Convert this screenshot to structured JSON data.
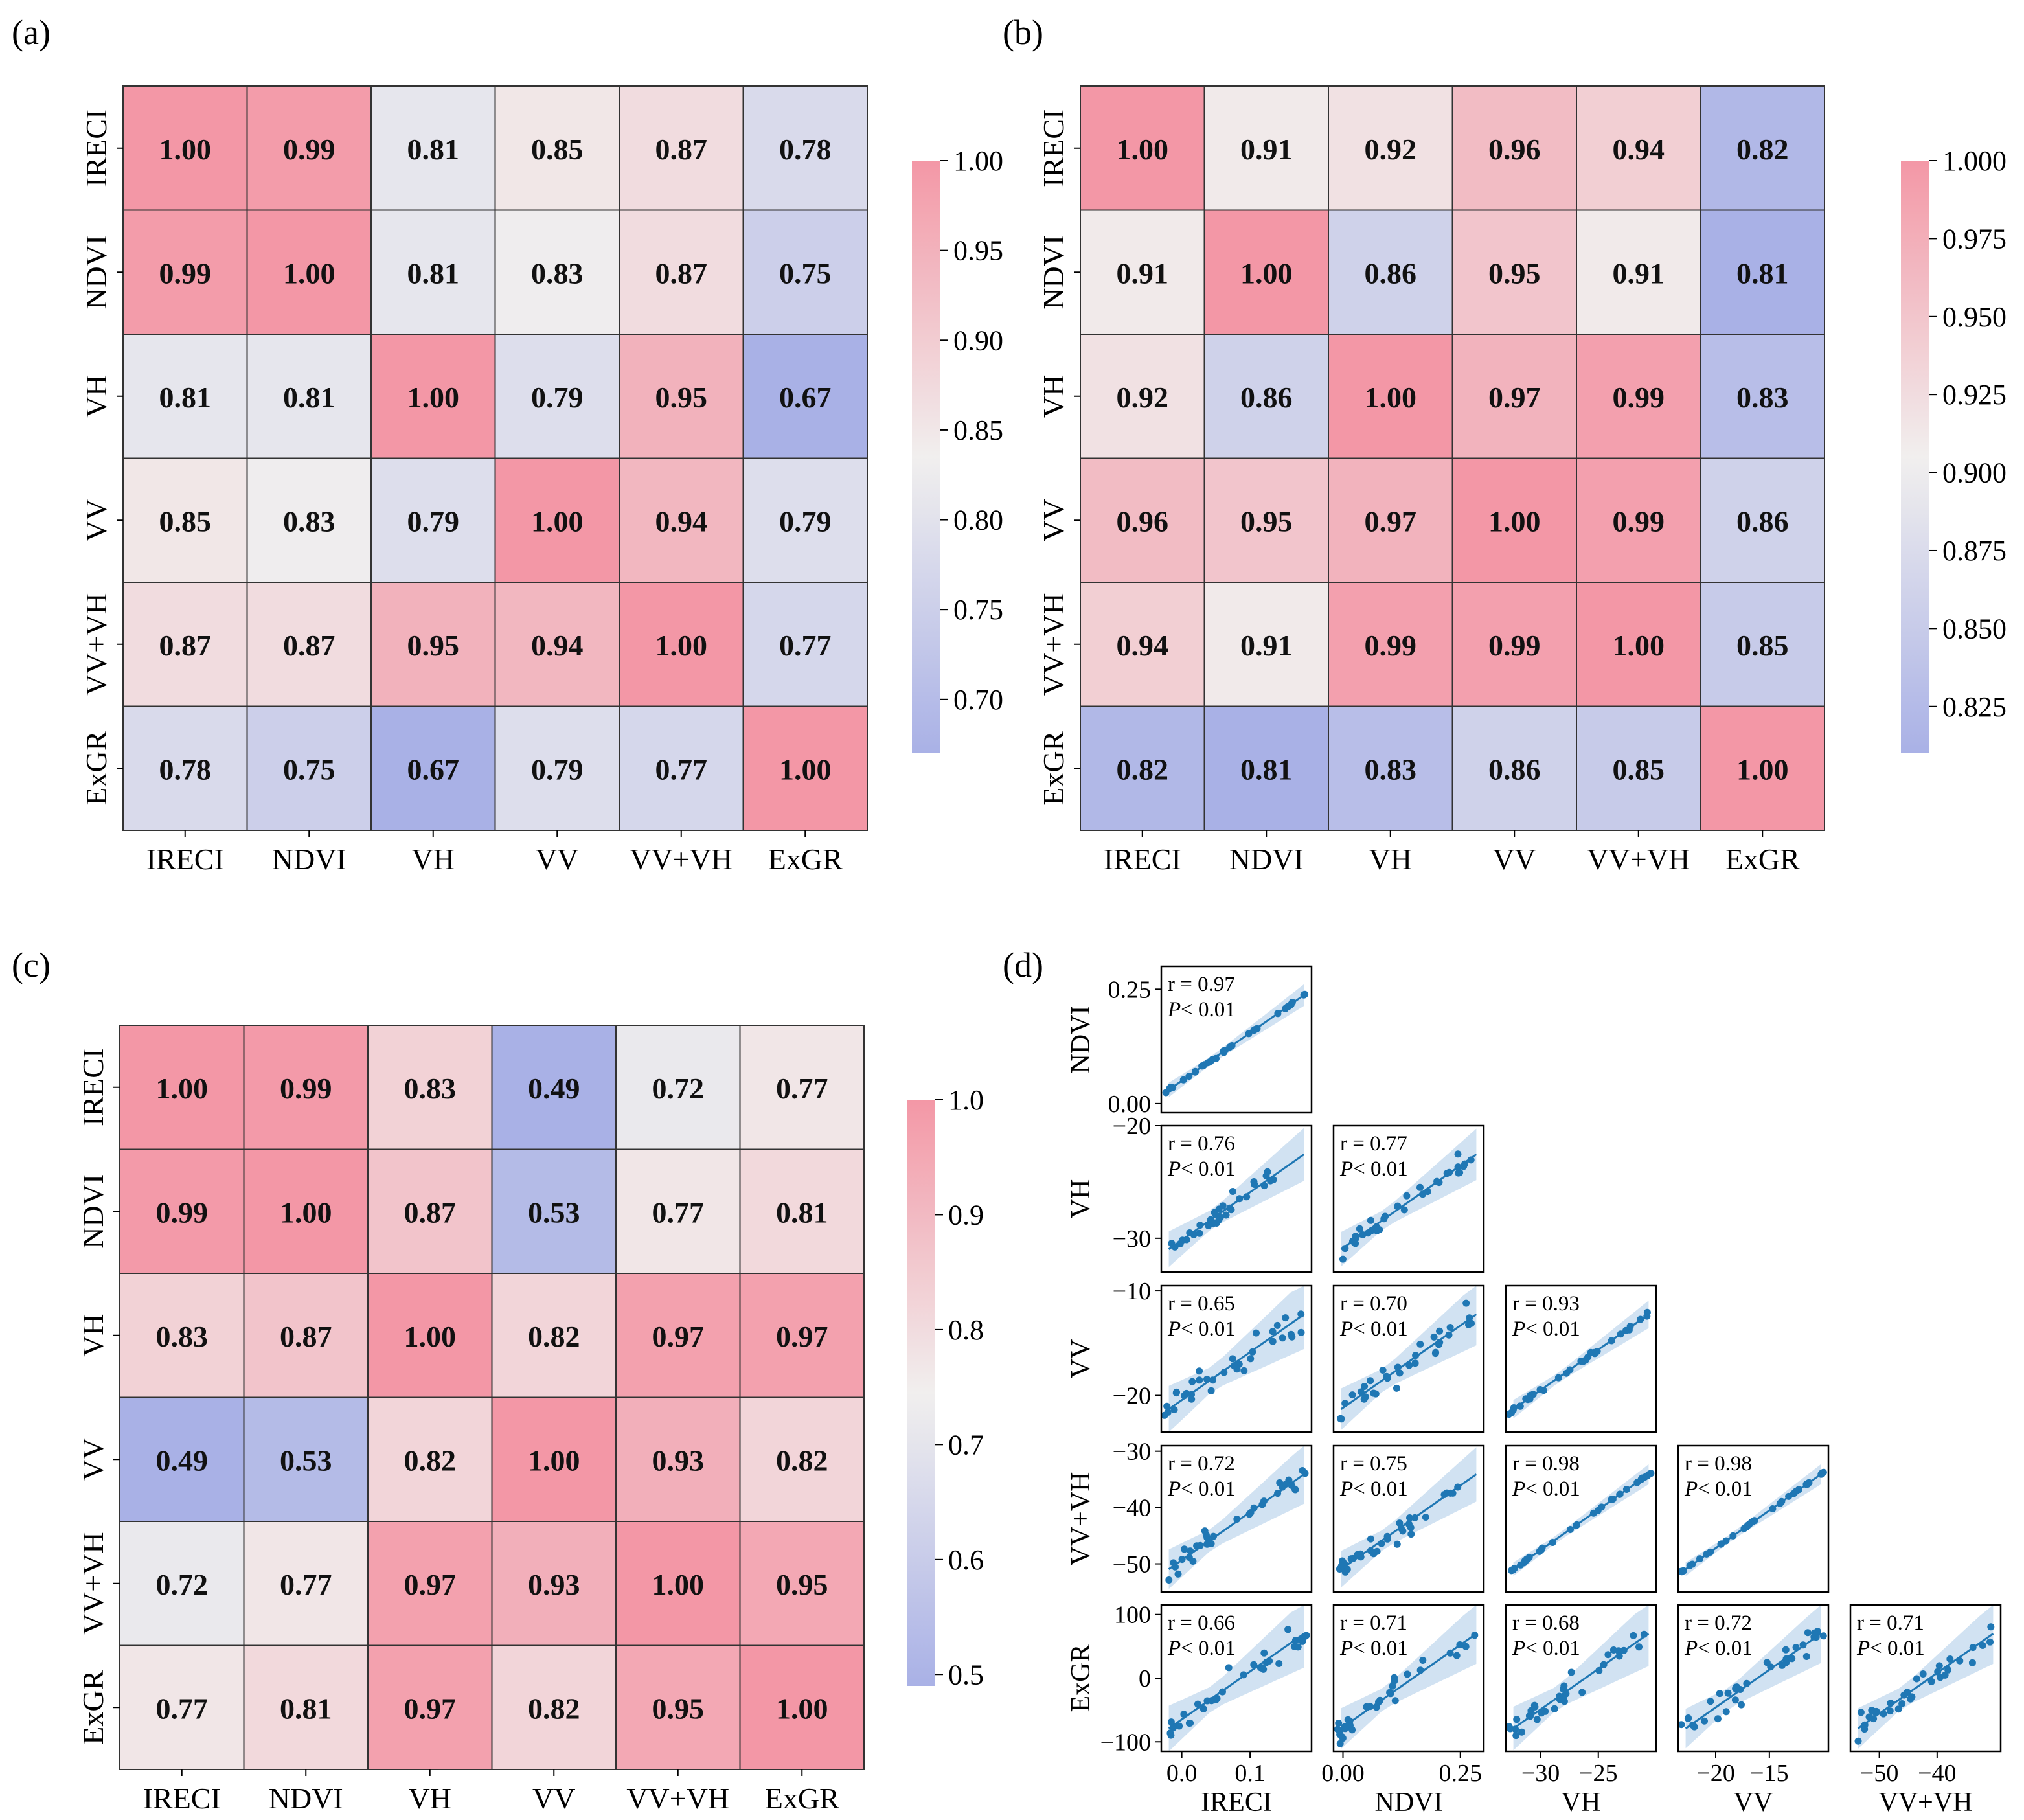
{
  "panels": [
    {
      "label": "(a)",
      "chart_data": {
        "type": "heatmap",
        "title": "",
        "variables": [
          "IRECI",
          "NDVI",
          "VH",
          "VV",
          "VV+VH",
          "ExGR"
        ],
        "matrix": [
          [
            1.0,
            0.99,
            0.81,
            0.85,
            0.87,
            0.78
          ],
          [
            0.99,
            1.0,
            0.81,
            0.83,
            0.87,
            0.75
          ],
          [
            0.81,
            0.81,
            1.0,
            0.79,
            0.95,
            0.67
          ],
          [
            0.85,
            0.83,
            0.79,
            1.0,
            0.94,
            0.79
          ],
          [
            0.87,
            0.87,
            0.95,
            0.94,
            1.0,
            0.77
          ],
          [
            0.78,
            0.75,
            0.67,
            0.79,
            0.77,
            1.0
          ]
        ],
        "colorbar": {
          "vmin": 0.67,
          "vmax": 1.0,
          "ticks": [
            1.0,
            0.95,
            0.9,
            0.85,
            0.8,
            0.75,
            0.7
          ],
          "tick_labels": [
            "1.00",
            "0.95",
            "0.90",
            "0.85",
            "0.80",
            "0.75",
            "0.70"
          ]
        },
        "cell_labels_format": "0.00"
      }
    },
    {
      "label": "(b)",
      "chart_data": {
        "type": "heatmap",
        "title": "",
        "variables": [
          "IRECI",
          "NDVI",
          "VH",
          "VV",
          "VV+VH",
          "ExGR"
        ],
        "matrix": [
          [
            1.0,
            0.91,
            0.92,
            0.96,
            0.94,
            0.82
          ],
          [
            0.91,
            1.0,
            0.86,
            0.95,
            0.91,
            0.81
          ],
          [
            0.92,
            0.86,
            1.0,
            0.97,
            0.99,
            0.83
          ],
          [
            0.96,
            0.95,
            0.97,
            1.0,
            0.99,
            0.86
          ],
          [
            0.94,
            0.91,
            0.99,
            0.99,
            1.0,
            0.85
          ],
          [
            0.82,
            0.81,
            0.83,
            0.86,
            0.85,
            1.0
          ]
        ],
        "colorbar": {
          "vmin": 0.81,
          "vmax": 1.0,
          "ticks": [
            1.0,
            0.975,
            0.95,
            0.925,
            0.9,
            0.875,
            0.85,
            0.825
          ],
          "tick_labels": [
            "1.000",
            "0.975",
            "0.950",
            "0.925",
            "0.900",
            "0.875",
            "0.850",
            "0.825"
          ]
        },
        "cell_labels_format": "0.00"
      }
    },
    {
      "label": "(c)",
      "chart_data": {
        "type": "heatmap",
        "title": "",
        "variables": [
          "IRECI",
          "NDVI",
          "VH",
          "VV",
          "VV+VH",
          "ExGR"
        ],
        "matrix": [
          [
            1.0,
            0.99,
            0.83,
            0.49,
            0.72,
            0.77
          ],
          [
            0.99,
            1.0,
            0.87,
            0.53,
            0.77,
            0.81
          ],
          [
            0.83,
            0.87,
            1.0,
            0.82,
            0.97,
            0.97
          ],
          [
            0.49,
            0.53,
            0.82,
            1.0,
            0.93,
            0.82
          ],
          [
            0.72,
            0.77,
            0.97,
            0.93,
            1.0,
            0.95
          ],
          [
            0.77,
            0.81,
            0.97,
            0.82,
            0.95,
            1.0
          ]
        ],
        "colorbar": {
          "vmin": 0.49,
          "vmax": 1.0,
          "ticks": [
            1.0,
            0.9,
            0.8,
            0.7,
            0.6,
            0.5
          ],
          "tick_labels": [
            "1.0",
            "0.9",
            "0.8",
            "0.7",
            "0.6",
            "0.5"
          ]
        },
        "cell_labels_format": "0.00"
      }
    }
  ],
  "scatter_panel": {
    "label": "(d)",
    "chart_data": {
      "type": "scatter",
      "title": "",
      "variables": [
        "IRECI",
        "NDVI",
        "VH",
        "VV",
        "VV+VH",
        "ExGR"
      ],
      "axis_ranges": {
        "IRECI": [
          -0.03,
          0.19
        ],
        "NDVI": [
          -0.02,
          0.3
        ],
        "VH": [
          -33,
          -20
        ],
        "VV": [
          -23.5,
          -9.5
        ],
        "VV+VH": [
          -55,
          -29
        ],
        "ExGR": [
          -115,
          115
        ]
      },
      "x_ticks": {
        "IRECI": [
          "0.0",
          "0.1"
        ],
        "NDVI": [
          "0.00",
          "0.25"
        ],
        "VH": [
          "−30",
          "−25"
        ],
        "VV": [
          "−20",
          "−15"
        ],
        "VV+VH": [
          "−50",
          "−40"
        ]
      },
      "y_ticks": {
        "NDVI": [
          "0.25",
          "0.00"
        ],
        "VH": [
          "−20",
          "−30"
        ],
        "VV": [
          "−10",
          "−20"
        ],
        "VV+VH": [
          "−30",
          "−40",
          "−50"
        ],
        "ExGR": [
          "100",
          "0",
          "−100"
        ]
      },
      "x_tick_values": {
        "IRECI": [
          0.0,
          0.1
        ],
        "NDVI": [
          0.0,
          0.25
        ],
        "VH": [
          -30,
          -25
        ],
        "VV": [
          -20,
          -15
        ],
        "VV+VH": [
          -50,
          -40
        ]
      },
      "y_tick_values": {
        "NDVI": [
          0.25,
          0.0
        ],
        "VH": [
          -20,
          -30
        ],
        "VV": [
          -10,
          -20
        ],
        "VV+VH": [
          -30,
          -40,
          -50
        ],
        "ExGR": [
          100,
          0,
          -100
        ]
      },
      "p_label": "P",
      "p_value_text": "< 0.01",
      "pairs": [
        {
          "x": "IRECI",
          "y": "NDVI",
          "r": "r = 0.97",
          "r_value": 0.97
        },
        {
          "x": "IRECI",
          "y": "VH",
          "r": "r = 0.76",
          "r_value": 0.76
        },
        {
          "x": "NDVI",
          "y": "VH",
          "r": "r = 0.77",
          "r_value": 0.77
        },
        {
          "x": "IRECI",
          "y": "VV",
          "r": "r = 0.65",
          "r_value": 0.65
        },
        {
          "x": "NDVI",
          "y": "VV",
          "r": "r = 0.70",
          "r_value": 0.7
        },
        {
          "x": "VH",
          "y": "VV",
          "r": "r = 0.93",
          "r_value": 0.93
        },
        {
          "x": "IRECI",
          "y": "VV+VH",
          "r": "r = 0.72",
          "r_value": 0.72
        },
        {
          "x": "NDVI",
          "y": "VV+VH",
          "r": "r = 0.75",
          "r_value": 0.75
        },
        {
          "x": "VH",
          "y": "VV+VH",
          "r": "r = 0.98",
          "r_value": 0.98
        },
        {
          "x": "VV",
          "y": "VV+VH",
          "r": "r = 0.98",
          "r_value": 0.98
        },
        {
          "x": "IRECI",
          "y": "ExGR",
          "r": "r = 0.66",
          "r_value": 0.66
        },
        {
          "x": "NDVI",
          "y": "ExGR",
          "r": "r = 0.71",
          "r_value": 0.71
        },
        {
          "x": "VH",
          "y": "ExGR",
          "r": "r = 0.68",
          "r_value": 0.68
        },
        {
          "x": "VV",
          "y": "ExGR",
          "r": "r = 0.72",
          "r_value": 0.72
        },
        {
          "x": "VV+VH",
          "y": "ExGR",
          "r": "r = 0.71",
          "r_value": 0.71
        }
      ],
      "marker_color": "#1f77b4",
      "line_color": "#1f77b4",
      "band_color": "#c6dbef"
    }
  },
  "colors": {
    "cmap_low": "#a9b1e6",
    "cmap_mid": "#f1efee",
    "cmap_high": "#f397a6",
    "grid": "#333333"
  }
}
